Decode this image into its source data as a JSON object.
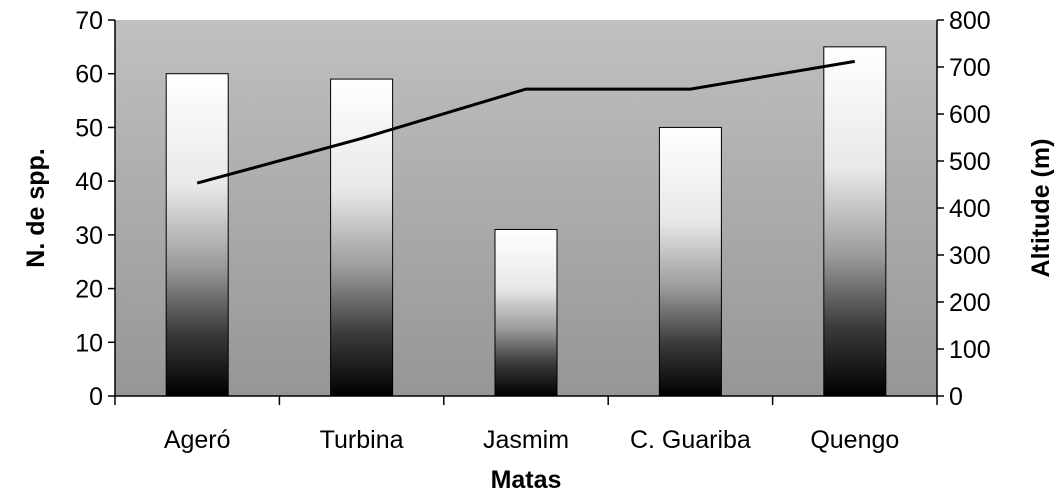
{
  "chart_data": {
    "type": "bar",
    "xlabel": "Matas",
    "ylabel": "N. de spp.",
    "y2label": "Altitude (m)",
    "categories": [
      "Ageró",
      "Turbina",
      "Jasmim",
      "C. Guariba",
      "Quengo"
    ],
    "series": [
      {
        "type": "bar",
        "axis": "left",
        "values": [
          60,
          59,
          31,
          50,
          65
        ]
      },
      {
        "type": "line",
        "axis": "right",
        "values": [
          453,
          548,
          653,
          653,
          712
        ]
      }
    ],
    "ylim": [
      0,
      70
    ],
    "yticks": [
      0,
      10,
      20,
      30,
      40,
      50,
      60,
      70
    ],
    "y2lim": [
      0,
      800
    ],
    "y2ticks": [
      0,
      100,
      200,
      300,
      400,
      500,
      600,
      700,
      800
    ],
    "grid": false,
    "legend": "none",
    "colors": {
      "plot_bg_top": "#c0c0c0",
      "plot_bg_bottom": "#969696",
      "line": "#000000",
      "bar_top": "#ffffff",
      "bar_bottom": "#000000"
    }
  }
}
